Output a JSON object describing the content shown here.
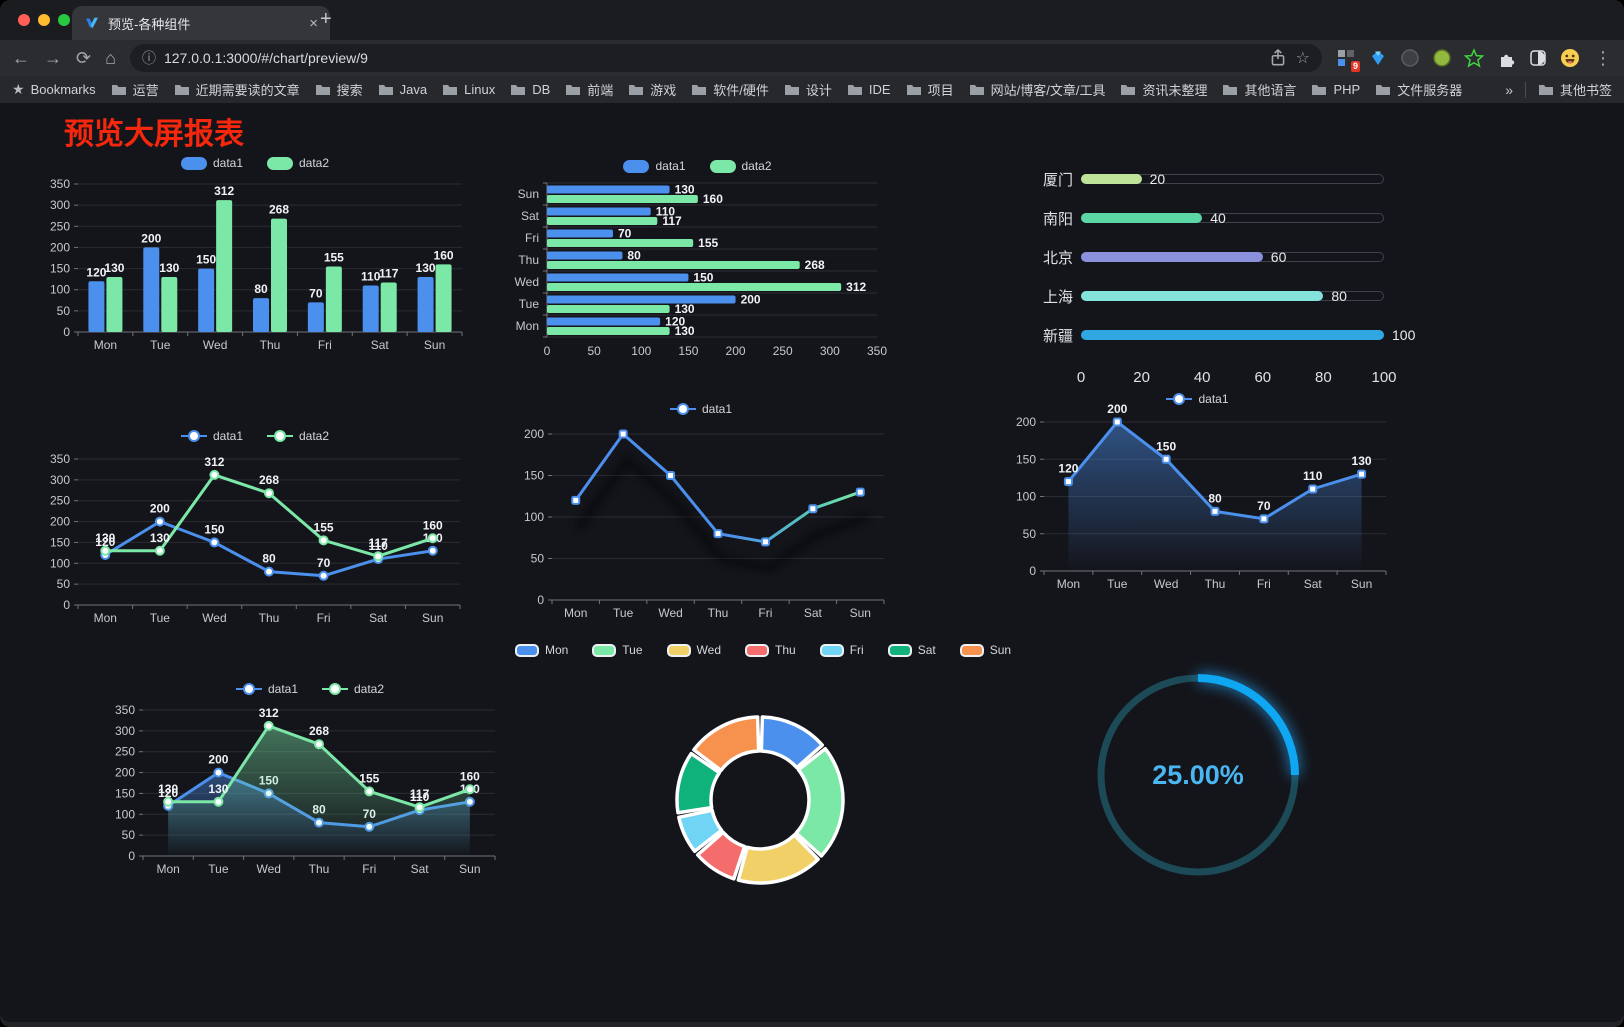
{
  "browser": {
    "tab": {
      "title": "预览-各种组件",
      "close_glyph": "×"
    },
    "new_tab_glyph": "+",
    "nav": {
      "back": "←",
      "forward": "→",
      "reload": "⟳",
      "home": "⌂"
    },
    "omnibox": {
      "info_glyph": "ⓘ",
      "url": "127.0.0.1:3000/#/chart/preview/9",
      "star_glyph": "☆"
    },
    "extension_badge": "9",
    "menu_glyph": "⋮",
    "bookmarks_bar": {
      "star_glyph": "★",
      "root_label": "Bookmarks",
      "items": [
        "运营",
        "近期需要读的文章",
        "搜索",
        "Java",
        "Linux",
        "DB",
        "前端",
        "游戏",
        "软件/硬件",
        "设计",
        "IDE",
        "项目",
        "网站/博客/文章/工具",
        "资讯未整理",
        "其他语言",
        "PHP",
        "文件服务器"
      ],
      "overflow_glyph": "»",
      "other_label": "其他书签"
    }
  },
  "page": {
    "title": "预览大屏报表",
    "title_color": "#f5270c",
    "background": "#14151b"
  },
  "chart_data": [
    {
      "id": "bar-grouped-vertical",
      "type": "bar",
      "categories": [
        "Mon",
        "Tue",
        "Wed",
        "Thu",
        "Fri",
        "Sat",
        "Sun"
      ],
      "series": [
        {
          "name": "data1",
          "color": "#4b90ec",
          "values": [
            120,
            200,
            150,
            80,
            70,
            110,
            130
          ]
        },
        {
          "name": "data2",
          "color": "#7ce8a8",
          "values": [
            130,
            130,
            312,
            268,
            155,
            117,
            160
          ]
        }
      ],
      "ylim": [
        0,
        350
      ],
      "ystep": 50,
      "legend_position": "top",
      "value_labels": true
    },
    {
      "id": "bar-grouped-horizontal",
      "type": "bar",
      "orientation": "horizontal",
      "categories": [
        "Mon",
        "Tue",
        "Wed",
        "Thu",
        "Fri",
        "Sat",
        "Sun"
      ],
      "category_display_order": [
        "Sun",
        "Sat",
        "Fri",
        "Thu",
        "Wed",
        "Tue",
        "Mon"
      ],
      "series": [
        {
          "name": "data1",
          "color": "#4b90ec",
          "values": [
            120,
            200,
            150,
            80,
            70,
            110,
            130
          ]
        },
        {
          "name": "data2",
          "color": "#7ce8a8",
          "values": [
            130,
            130,
            312,
            268,
            155,
            117,
            160
          ]
        }
      ],
      "xlim": [
        0,
        350
      ],
      "xstep": 50,
      "legend_position": "top",
      "value_labels": true
    },
    {
      "id": "city-progress-bars",
      "type": "bar",
      "orientation": "horizontal",
      "categories": [
        "厦门",
        "南阳",
        "北京",
        "上海",
        "新疆"
      ],
      "values": [
        20,
        40,
        60,
        80,
        100
      ],
      "colors": [
        "#c0e39a",
        "#5cd6a4",
        "#8a90dc",
        "#84e2dc",
        "#2fa8e2"
      ],
      "xlim": [
        0,
        100
      ],
      "xticks": [
        0,
        20,
        40,
        60,
        80,
        100
      ],
      "value_labels": true
    },
    {
      "id": "line-two-series",
      "type": "line",
      "categories": [
        "Mon",
        "Tue",
        "Wed",
        "Thu",
        "Fri",
        "Sat",
        "Sun"
      ],
      "series": [
        {
          "name": "data1",
          "color": "#4b90ec",
          "values": [
            120,
            200,
            150,
            80,
            70,
            110,
            130
          ]
        },
        {
          "name": "data2",
          "color": "#7ce8a8",
          "values": [
            130,
            130,
            312,
            268,
            155,
            117,
            160
          ]
        }
      ],
      "ylim": [
        0,
        350
      ],
      "ystep": 50,
      "legend_position": "top",
      "value_labels": true,
      "marker": "circle"
    },
    {
      "id": "line-gradient-single",
      "type": "line",
      "categories": [
        "Mon",
        "Tue",
        "Wed",
        "Thu",
        "Fri",
        "Sat",
        "Sun"
      ],
      "series": [
        {
          "name": "data1",
          "color": "#4b90ec",
          "values": [
            120,
            200,
            150,
            80,
            70,
            110,
            130
          ]
        }
      ],
      "line_gradient": [
        "#4b90ec",
        "#7ce8a8"
      ],
      "ylim": [
        0,
        200
      ],
      "ystep": 50,
      "legend_position": "top",
      "value_labels": false,
      "marker": "rect",
      "shadow": true
    },
    {
      "id": "area-single",
      "type": "area",
      "categories": [
        "Mon",
        "Tue",
        "Wed",
        "Thu",
        "Fri",
        "Sat",
        "Sun"
      ],
      "series": [
        {
          "name": "data1",
          "color": "#4b90ec",
          "values": [
            120,
            200,
            150,
            80,
            70,
            110,
            130
          ]
        }
      ],
      "ylim": [
        0,
        200
      ],
      "ystep": 50,
      "legend_position": "top",
      "value_labels": true,
      "marker": "rect",
      "area_opacity": 0.5
    },
    {
      "id": "area-two-series",
      "type": "area",
      "categories": [
        "Mon",
        "Tue",
        "Wed",
        "Thu",
        "Fri",
        "Sat",
        "Sun"
      ],
      "series": [
        {
          "name": "data1",
          "color": "#4b90ec",
          "values": [
            120,
            200,
            150,
            80,
            70,
            110,
            130
          ]
        },
        {
          "name": "data2",
          "color": "#7ce8a8",
          "values": [
            130,
            130,
            312,
            268,
            155,
            117,
            160
          ]
        }
      ],
      "ylim": [
        0,
        350
      ],
      "ystep": 50,
      "legend_position": "top",
      "value_labels": true,
      "marker": "circle",
      "area_opacity": 0.45
    },
    {
      "id": "weekday-donut",
      "type": "pie",
      "categories": [
        "Mon",
        "Tue",
        "Wed",
        "Thu",
        "Fri",
        "Sat",
        "Sun"
      ],
      "values": [
        120,
        200,
        150,
        80,
        70,
        110,
        130
      ],
      "colors": [
        "#4b90ec",
        "#7ce8a8",
        "#f2d068",
        "#f56c6c",
        "#70d5f5",
        "#10b27c",
        "#f6924e"
      ],
      "inner_radius_ratio": 0.59,
      "legend_position": "top"
    },
    {
      "id": "percent-gauge",
      "type": "gauge",
      "value": 25,
      "max": 100,
      "label": "25.00%",
      "arc_color": "#0fa6f2",
      "track_color": "#1c4a57",
      "text_color": "#4bb7f2"
    }
  ]
}
